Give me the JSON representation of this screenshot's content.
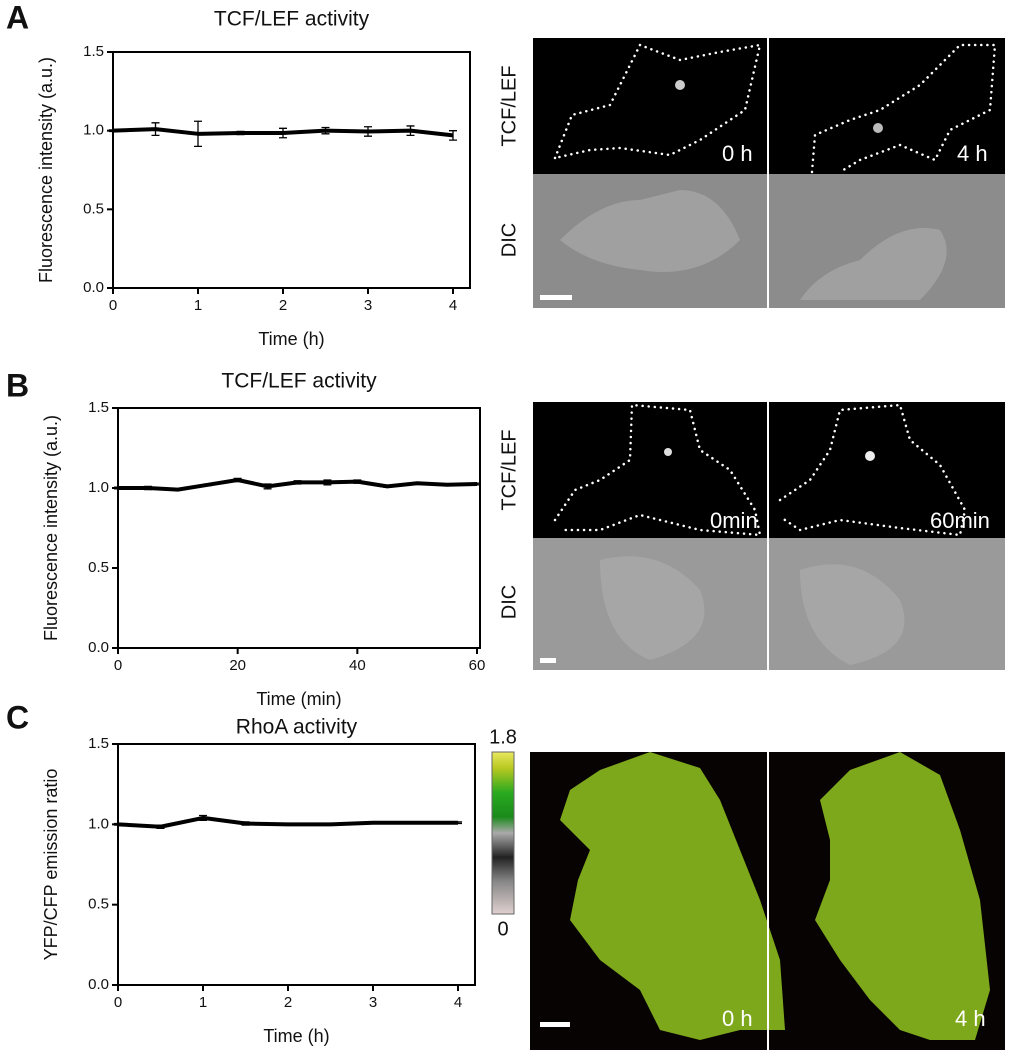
{
  "chart_data": [
    {
      "type": "line",
      "title": "TCF/LEF activity",
      "x_label": "Time (h)",
      "y_label": "Fluorescence intensity (a.u.)",
      "x": [
        0,
        0.5,
        1,
        1.5,
        2,
        2.5,
        3,
        3.5,
        4
      ],
      "values": [
        1.0,
        1.01,
        0.98,
        0.985,
        0.985,
        1.0,
        0.995,
        1.0,
        0.97
      ],
      "errors": [
        0.005,
        0.04,
        0.08,
        0.01,
        0.03,
        0.02,
        0.03,
        0.03,
        0.03
      ],
      "color": "#000000",
      "xlim": [
        0,
        4.2
      ],
      "ylim": [
        0,
        1.5
      ],
      "xticks": [
        0,
        1,
        2,
        3,
        4
      ],
      "yticks": [
        {
          "value": 0,
          "label": "0.0"
        },
        {
          "value": 0.5,
          "label": "0.5"
        },
        {
          "value": 1,
          "label": "1.0"
        },
        {
          "value": 1.5,
          "label": "1.5"
        }
      ]
    },
    {
      "type": "line",
      "title": "TCF/LEF activity",
      "x_label": "Time (min)",
      "y_label": "Fluorescence intensity (a.u.)",
      "x": [
        0,
        5,
        10,
        15,
        20,
        25,
        30,
        35,
        40,
        45,
        50,
        55,
        60
      ],
      "values": [
        1.0,
        1.0,
        0.99,
        1.02,
        1.05,
        1.01,
        1.035,
        1.035,
        1.04,
        1.01,
        1.03,
        1.02,
        1.025
      ],
      "errors": [
        0.005,
        0.01,
        0.005,
        0.005,
        0.01,
        0.015,
        0.01,
        0.015,
        0.01,
        0.005,
        0.005,
        0.005,
        0.005
      ],
      "color": "#000000",
      "xlim": [
        0,
        60.5
      ],
      "ylim": [
        0,
        1.5
      ],
      "xticks": [
        0,
        20,
        40,
        60
      ],
      "yticks": [
        {
          "value": 0,
          "label": "0.0"
        },
        {
          "value": 0.5,
          "label": "0.5"
        },
        {
          "value": 1,
          "label": "1.0"
        },
        {
          "value": 1.5,
          "label": "1.5"
        }
      ]
    },
    {
      "type": "line",
      "title": "RhoA activity",
      "x_label": "Time (h)",
      "y_label": "YFP/CFP emission ratio",
      "x": [
        0,
        0.5,
        1,
        1.5,
        2,
        2.5,
        3,
        3.5,
        4
      ],
      "values": [
        1.0,
        0.985,
        1.04,
        1.005,
        1.0,
        1.0,
        1.01,
        1.01,
        1.01
      ],
      "errors": [
        0.005,
        0.01,
        0.015,
        0.01,
        0.005,
        0.005,
        0.005,
        0.005,
        0.005
      ],
      "color": "#000000",
      "xlim": [
        0,
        4.2
      ],
      "ylim": [
        0,
        1.5
      ],
      "xticks": [
        0,
        1,
        2,
        3,
        4
      ],
      "yticks": [
        {
          "value": 0,
          "label": "0.0"
        },
        {
          "value": 0.5,
          "label": "0.5"
        },
        {
          "value": 1,
          "label": "1.0"
        },
        {
          "value": 1.5,
          "label": "1.5"
        }
      ]
    }
  ],
  "panels": [
    {
      "label": "A",
      "channels": [
        "TCF/LEF",
        "DIC"
      ],
      "timepoints": [
        "0 h",
        "4 h"
      ]
    },
    {
      "label": "B",
      "channels": [
        "TCF/LEF",
        "DIC"
      ],
      "timepoints": [
        "0min",
        "60min"
      ]
    },
    {
      "label": "C",
      "timepoints": [
        "0 h",
        "4 h"
      ],
      "colorbar": {
        "max": 1.8,
        "min": 0
      }
    }
  ]
}
